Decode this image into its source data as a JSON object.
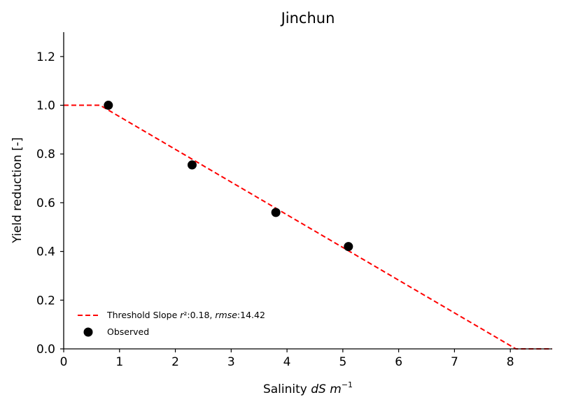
{
  "chart_data": {
    "type": "scatter",
    "title": "Jinchun",
    "xlabel_parts": [
      "Salinity ",
      "dS m",
      "−1"
    ],
    "ylabel": "Yield reduction [-]",
    "xlim": [
      0,
      8.75
    ],
    "ylim": [
      0,
      1.3
    ],
    "x_ticks": [
      0,
      1,
      2,
      3,
      4,
      5,
      6,
      7,
      8
    ],
    "y_ticks": [
      0.0,
      0.2,
      0.4,
      0.6,
      0.8,
      1.0,
      1.2
    ],
    "grid": false,
    "legend_position": "lower-left",
    "series": [
      {
        "name": "Threshold Slope",
        "legend_parts": [
          "Threshold Slope ",
          "r",
          "²",
          ":0.18, ",
          "rmse",
          ":14.42"
        ],
        "kind": "line",
        "style": "dashed",
        "color": "#ff0000",
        "x": [
          0,
          0.65,
          8.1,
          8.75
        ],
        "y": [
          1.0,
          1.0,
          0.0,
          0.0
        ]
      },
      {
        "name": "Observed",
        "kind": "points",
        "color": "#000000",
        "x": [
          0.8,
          2.3,
          3.8,
          5.1
        ],
        "y": [
          1.0,
          0.755,
          0.56,
          0.42
        ]
      }
    ]
  }
}
